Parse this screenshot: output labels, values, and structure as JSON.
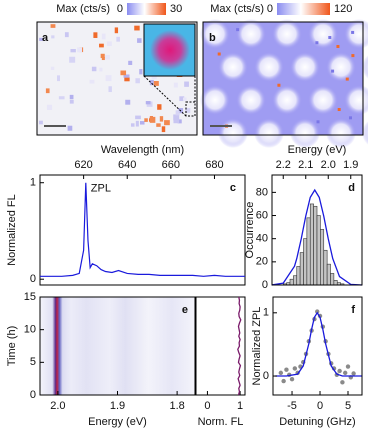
{
  "chart_data": [
    {
      "type": "image",
      "panel": "a",
      "colorbar_label": "Max (cts/s)",
      "clim": [
        0,
        30
      ],
      "cticks": [
        0,
        30
      ]
    },
    {
      "type": "image",
      "panel": "b",
      "colorbar_label": "Max (cts/s)",
      "clim": [
        0,
        120
      ],
      "cticks": [
        0,
        120
      ]
    },
    {
      "type": "line",
      "panel": "c",
      "xlabel": "Wavelength (nm)",
      "ylabel": "Normalized FL",
      "annotation": "ZPL",
      "color": "#1a1adc",
      "x": [
        600,
        605,
        610,
        615,
        618,
        620,
        621,
        622,
        623,
        624,
        626,
        628,
        630,
        633,
        636,
        640,
        645,
        650,
        655,
        660,
        665,
        670,
        675,
        680,
        685,
        690,
        694
      ],
      "values": [
        0.03,
        0.03,
        0.03,
        0.04,
        0.06,
        0.3,
        1.0,
        0.4,
        0.12,
        0.16,
        0.14,
        0.1,
        0.08,
        0.07,
        0.09,
        0.06,
        0.05,
        0.05,
        0.04,
        0.04,
        0.04,
        0.04,
        0.03,
        0.04,
        0.03,
        0.03,
        0.03
      ],
      "xlim": [
        600,
        694
      ],
      "xticks": [
        620,
        640,
        660,
        680
      ],
      "ylim": [
        -0.06,
        1.08
      ],
      "yticks": [
        0,
        1
      ]
    },
    {
      "type": "histogram",
      "panel": "d",
      "xlabel": "Energy (eV)",
      "ylabel": "Occurrence",
      "color": "#c4c4c4",
      "bins": [
        2.2,
        2.185,
        2.17,
        2.155,
        2.14,
        2.125,
        2.11,
        2.095,
        2.08,
        2.065,
        2.05,
        2.035,
        2.02,
        2.005,
        1.99,
        1.975,
        1.96,
        1.945,
        1.93
      ],
      "values": [
        1,
        2,
        5,
        8,
        16,
        28,
        40,
        58,
        70,
        68,
        60,
        48,
        30,
        18,
        10,
        4,
        2,
        1
      ],
      "fit": {
        "x": [
          2.25,
          2.2,
          2.15,
          2.14,
          2.12,
          2.1,
          2.08,
          2.06,
          2.04,
          2.02,
          2.0,
          1.98,
          1.95,
          1.9,
          1.85
        ],
        "values": [
          0.06,
          1.6,
          16.2,
          22.8,
          39.9,
          59.5,
          75.7,
          82,
          75.7,
          59.5,
          39.9,
          22.8,
          7.3,
          0.5,
          0.01
        ],
        "color": "#1a1adc"
      },
      "xlim": [
        2.25,
        1.85
      ],
      "xticks": [
        2.2,
        2.1,
        {
          "value": 2,
          "label": "2.0"
        },
        1.9
      ],
      "ylim": [
        0,
        95
      ],
      "yticks": [
        0,
        20,
        40,
        60,
        80
      ]
    },
    {
      "type": "heatmap",
      "panel": "e",
      "xlabel": "Energy (eV)",
      "ylabel": "Time (h)",
      "xlim": [
        2.03,
        1.77
      ],
      "xticks": [
        {
          "value": 2,
          "label": "2.0"
        },
        1.9,
        1.8
      ],
      "ylim": [
        0,
        15
      ],
      "yticks": [
        0,
        5,
        10,
        15
      ]
    },
    {
      "type": "trace",
      "xlabel": "Norm. FL",
      "color": "#7a1a6a",
      "y": [
        0,
        0.5,
        1,
        1.5,
        2,
        2.5,
        3,
        3.5,
        4,
        4.5,
        5,
        5.5,
        6,
        6.5,
        7,
        7.5,
        8,
        8.5,
        9,
        9.5,
        10,
        10.5,
        11,
        11.5,
        12,
        12.5,
        13,
        13.5,
        14,
        14.5,
        15
      ],
      "values": [
        0.95,
        0.98,
        0.96,
        1.0,
        0.97,
        0.94,
        0.99,
        0.96,
        0.98,
        1.01,
        0.95,
        0.97,
        1.0,
        0.96,
        0.93,
        0.98,
        0.97,
        1.0,
        0.96,
        0.99,
        0.97,
        0.95,
        0.98,
        1.02,
        0.97,
        0.96,
        0.99,
        1.0,
        0.97,
        0.98,
        0.96
      ],
      "xlim": [
        -0.35,
        1.15
      ],
      "xticks": [
        0,
        1
      ],
      "ylim": [
        0,
        15
      ]
    },
    {
      "type": "scatter",
      "panel": "f",
      "xlabel": "Detuning (GHz)",
      "ylabel": "Normalized ZPL",
      "color": "#8a8a8a",
      "x": [
        -7,
        -6.5,
        -6,
        -5.5,
        -5,
        -4.5,
        -4,
        -3.5,
        -3,
        -2.5,
        -2,
        -1.5,
        -1,
        -0.5,
        0,
        0.5,
        1,
        1.5,
        2,
        2.5,
        3,
        3.5,
        4,
        4.5,
        5,
        5.5,
        6
      ],
      "values": [
        0.05,
        -0.08,
        0.1,
        0.02,
        -0.05,
        0.12,
        0.05,
        0.15,
        0.22,
        0.35,
        0.55,
        0.72,
        0.9,
        1.02,
        0.95,
        0.78,
        0.55,
        0.35,
        0.2,
        0.12,
        0.02,
        0.08,
        -0.1,
        0.05,
        0.15,
        -0.02,
        0.04
      ],
      "fit": {
        "x": [
          -8,
          -6,
          -4,
          -3,
          -2,
          -1.5,
          -1,
          -0.5,
          0,
          0.5,
          1,
          2,
          3,
          4,
          6,
          7.5
        ],
        "values": [
          0,
          0,
          0.03,
          0.16,
          0.51,
          0.74,
          0.93,
          1,
          0.93,
          0.74,
          0.51,
          0.16,
          0.03,
          0,
          0,
          0
        ],
        "color": "#1a1adc"
      },
      "xlim": [
        -8.4,
        7.5
      ],
      "xticks": [
        -5,
        0,
        5
      ],
      "ylim": [
        -0.3,
        1.25
      ],
      "yticks": [
        0,
        1
      ]
    }
  ]
}
